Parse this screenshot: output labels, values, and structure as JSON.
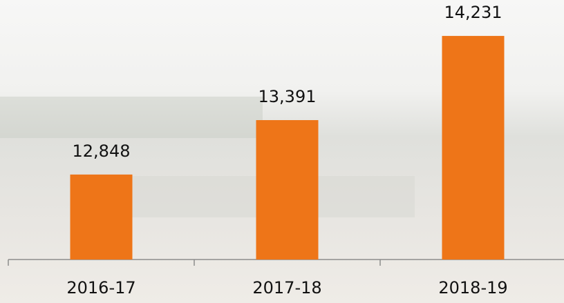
{
  "chart_data": {
    "type": "bar",
    "categories": [
      "2016-17",
      "2017-18",
      "2018-19"
    ],
    "values": [
      12848,
      13391,
      14231
    ],
    "value_labels": [
      "12,848",
      "13,391",
      "14,231"
    ],
    "color": "#ee7518",
    "ylim": [
      12000,
      14500
    ]
  }
}
